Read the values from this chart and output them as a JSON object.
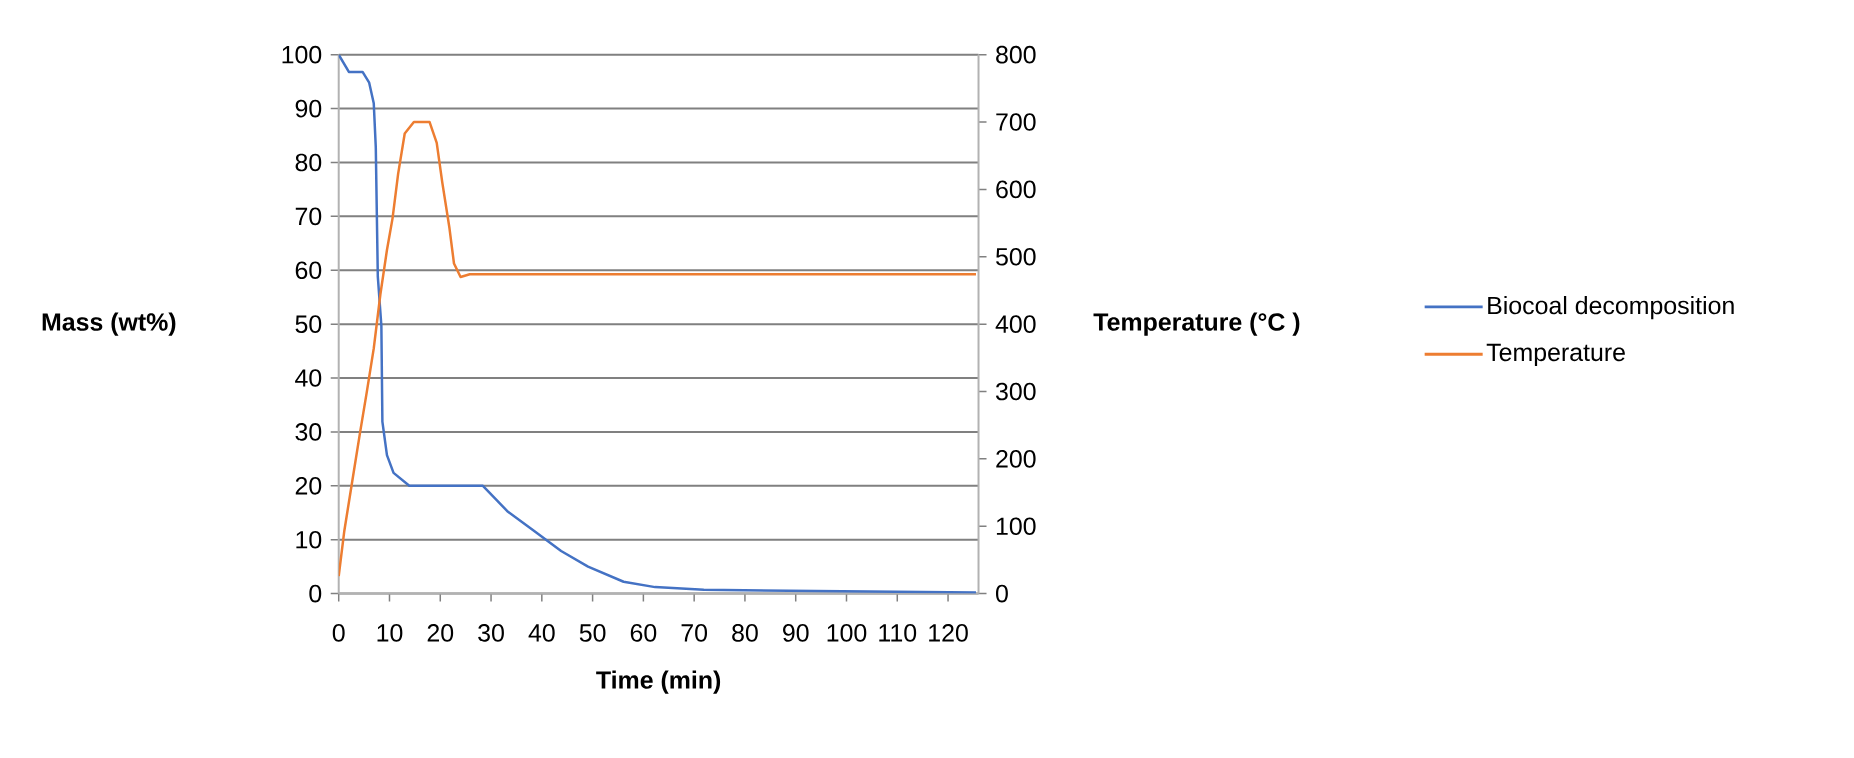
{
  "chart_data": {
    "type": "line",
    "xlabel": "Time (min)",
    "ylabel": "Mass (wt%)",
    "y2label": "Temperature (°C )",
    "xlim": [
      0,
      126
    ],
    "xticks": [
      0,
      10,
      20,
      30,
      40,
      50,
      60,
      70,
      80,
      90,
      100,
      110,
      120
    ],
    "ylim": [
      0,
      100
    ],
    "yticks": [
      0,
      10,
      20,
      30,
      40,
      50,
      60,
      70,
      80,
      90,
      100
    ],
    "y2lim": [
      0,
      800
    ],
    "y2ticks": [
      0,
      100,
      200,
      300,
      400,
      500,
      600,
      700,
      800
    ],
    "grid": "y",
    "legend": "right",
    "series": [
      {
        "name": "Biocoal decomposition",
        "color": "#4472c4",
        "x": [
          0,
          2.0,
          4.7,
          6.0,
          6.9,
          7.3,
          7.7,
          8.4,
          8.6,
          9.5,
          10.8,
          13.9,
          28.4,
          33.2,
          38.5,
          43.8,
          49.1,
          56.1,
          62.3,
          71.9,
          125.5
        ],
        "values": [
          100,
          96.8,
          96.8,
          94.8,
          91,
          82.8,
          58.8,
          49.7,
          31.9,
          25.7,
          22.4,
          20,
          20,
          15.3,
          11.6,
          7.9,
          5,
          2.2,
          1.2,
          0.7,
          0.2
        ]
      },
      {
        "name": "Temperature",
        "color": "#ed7d31",
        "axis": "y2",
        "x": [
          0,
          1.1,
          2.5,
          4.2,
          5.5,
          6.9,
          8.2,
          9.5,
          10.6,
          11.7,
          13.0,
          14.8,
          17.9,
          19.3,
          20.4,
          21.8,
          22.7,
          24.0,
          25.8,
          125.5
        ],
        "values": [
          26,
          93,
          159,
          239,
          298,
          364,
          444,
          510,
          557,
          623,
          683,
          700,
          700,
          669,
          610,
          543,
          490,
          470,
          474,
          474
        ]
      }
    ]
  }
}
